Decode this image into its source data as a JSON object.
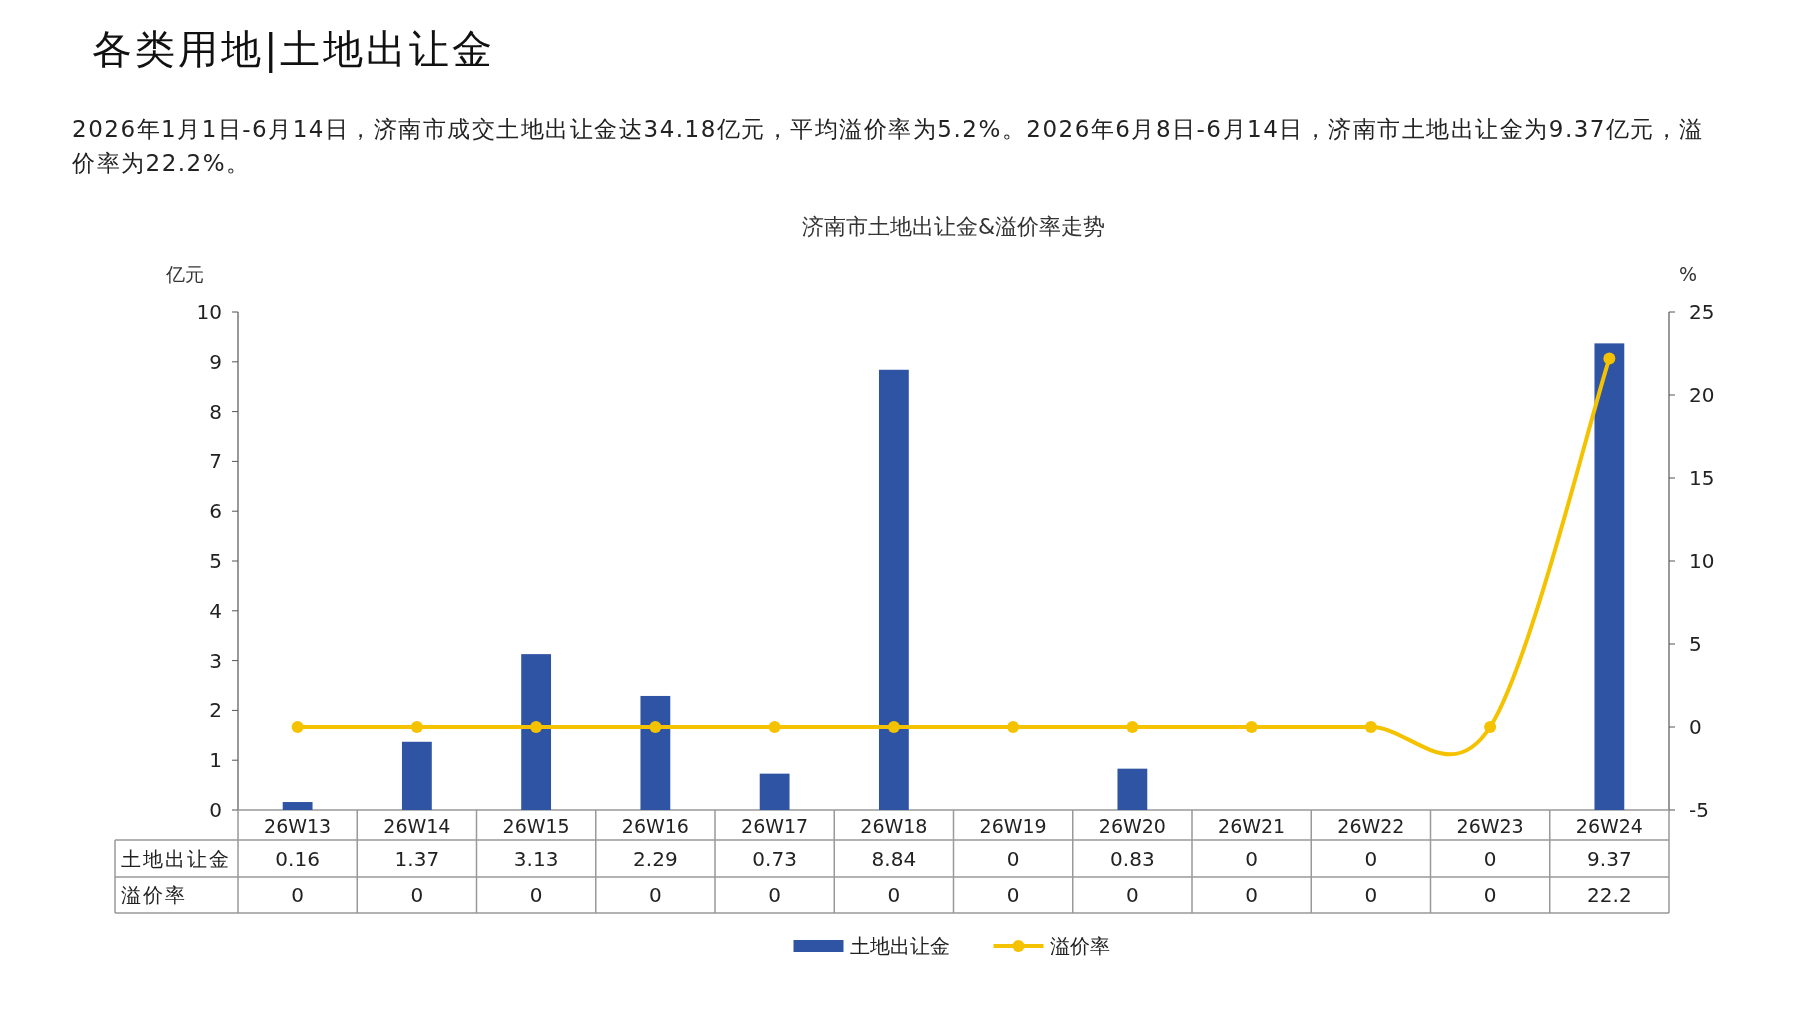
{
  "chart_data": {
    "type": "bar",
    "title": "济南市土地出让金&溢价率走势",
    "ylabel": "亿元",
    "y2label": "%",
    "categories": [
      "26W13",
      "26W14",
      "26W15",
      "26W16",
      "26W17",
      "26W18",
      "26W19",
      "26W20",
      "26W21",
      "26W22",
      "26W23",
      "26W24"
    ],
    "series": [
      {
        "name": "土地出让金",
        "color": "#2e54a3",
        "values": [
          0.16,
          1.37,
          3.13,
          2.29,
          0.73,
          8.84,
          0,
          0.83,
          0,
          0,
          0,
          9.37
        ]
      },
      {
        "name": "溢价率",
        "type": "line",
        "axis": "y2",
        "color": "#f5c200",
        "values": [
          0,
          0,
          0,
          0,
          0,
          0,
          0,
          0,
          0,
          0,
          0,
          22.2
        ]
      }
    ],
    "ylim": [
      0,
      10
    ],
    "yticks": [
      0,
      1,
      2,
      3,
      4,
      5,
      6,
      7,
      8,
      9,
      10
    ],
    "y2lim": [
      -5,
      25
    ],
    "y2ticks": [
      -5,
      0,
      5,
      10,
      15,
      20,
      25
    ],
    "marker": "circle",
    "data_labels": true,
    "legend": "bottom",
    "grid": false,
    "annotations": [
      "各类用地|土地出让金",
      "2026年1月1日-6月14日，济南市成交土地出让金达34.18亿元，平均溢价率为5.2%。2026年6月8日-6月14日，济南市土地出让金为9.37亿元，溢价率为22.2%。"
    ]
  }
}
